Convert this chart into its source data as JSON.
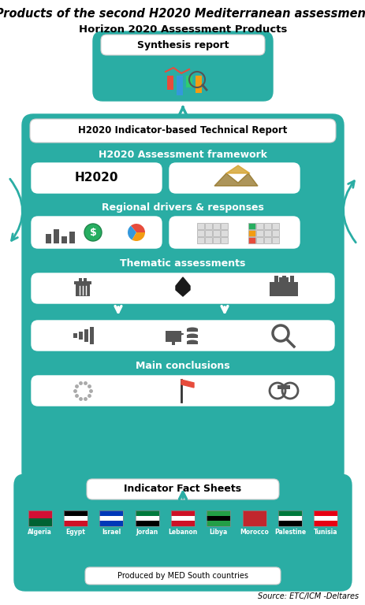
{
  "title": "Products of the second H2020 Mediterranean assessment",
  "subtitle": "Horizon 2020 Assessment Products",
  "teal_color": "#2AADA4",
  "white_color": "#FFFFFF",
  "dark_color": "#1a1a1a",
  "source_text": "Source: ETC/ICM -Deltares",
  "produced_text": "Produced by MED South countries",
  "synthesis_label": "Synthesis report",
  "technical_label": "H2020 Indicator-based Technical Report",
  "framework_label": "H2020 Assessment framework",
  "framework_sub1": "H2020",
  "regional_label": "Regional drivers & responses",
  "thematic_label": "Thematic assessments",
  "conclusions_label": "Main conclusions",
  "indicator_label": "Indicator Fact Sheets",
  "countries": [
    "Algeria",
    "Egypt",
    "Israel",
    "Jordan",
    "Lebanon",
    "Libya",
    "Morocco",
    "Palestine",
    "Tunisia"
  ],
  "bg_color": "#FFFFFF",
  "teal_border": "#2AADA4",
  "white_box_ec": "#aaaaaa"
}
